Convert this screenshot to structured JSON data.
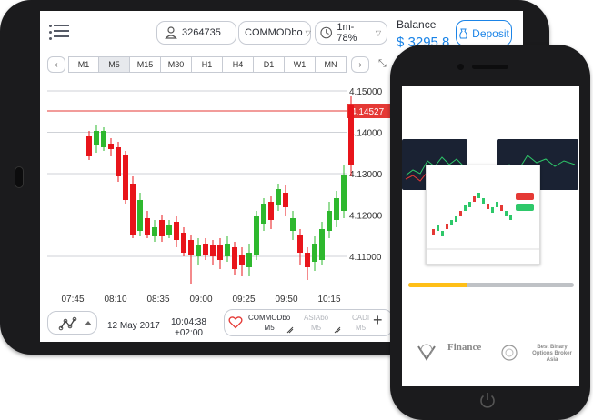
{
  "tablet": {
    "account_id": "3264735",
    "asset": "COMMODbo",
    "expiry": "1m-78%",
    "balance_label": "Balance",
    "balance_value": "$ 3295.8",
    "deposit_label": "Deposit",
    "timeframes": [
      "M1",
      "M5",
      "M15",
      "M30",
      "H1",
      "H4",
      "D1",
      "W1",
      "MN"
    ],
    "active_timeframe": "M5",
    "chart_data": {
      "type": "candlestick",
      "current_price": "4.14527",
      "y_ticks": [
        "4.15000",
        "4.14000",
        "4.13000",
        "4.12000",
        "4.11000"
      ],
      "x_ticks": [
        "07:45",
        "08:10",
        "08:35",
        "09:00",
        "09:25",
        "09:50",
        "10:15"
      ]
    },
    "date": "12 May 2017",
    "time": "10:04:38",
    "timezone": "+02:00",
    "assets": [
      {
        "name": "COMMODbo",
        "tf": "M5"
      },
      {
        "name": "ASIAbo",
        "tf": "M5"
      },
      {
        "name": "CADI",
        "tf": "M5"
      }
    ]
  },
  "phone": {
    "progress": 0.35,
    "logos": [
      "Finance",
      "Best Binary Options Broker Asia"
    ]
  }
}
